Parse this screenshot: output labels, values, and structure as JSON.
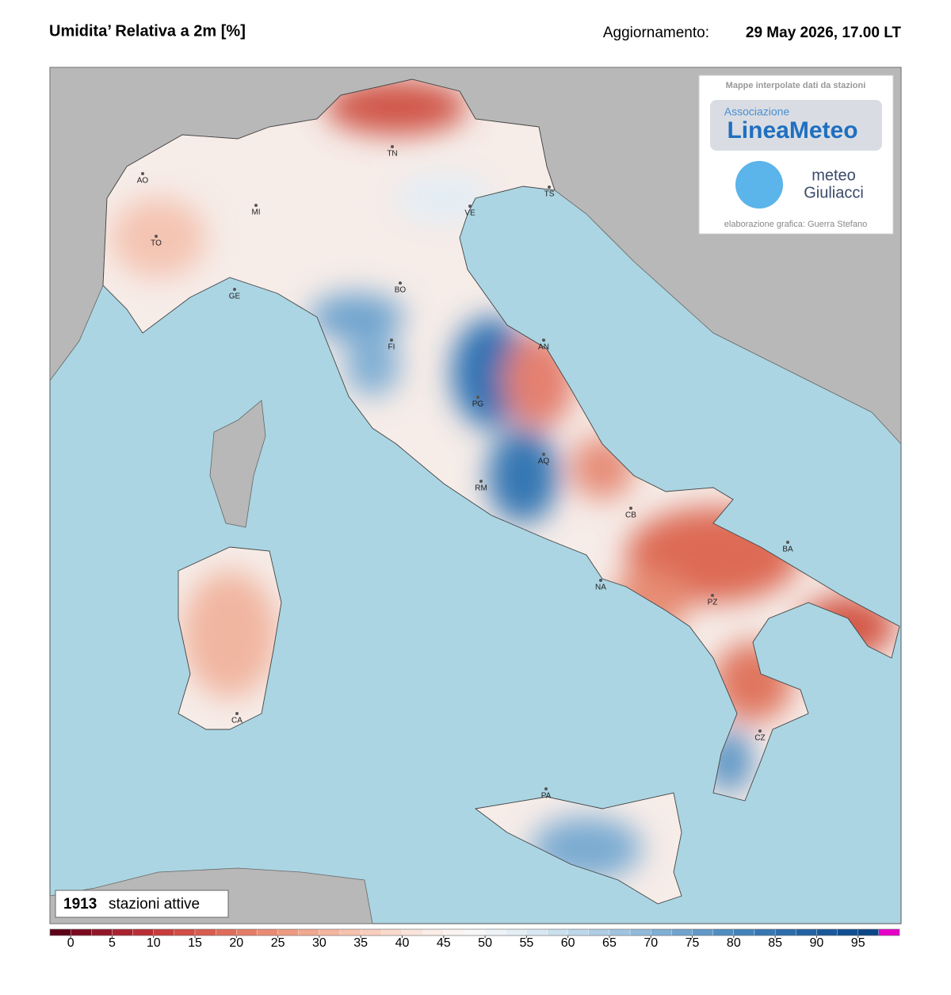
{
  "header": {
    "title": "Umidita’ Relativa a 2m [%]",
    "update_label": "Aggiornamento:",
    "update_time": "29 May 2026, 17.00 LT"
  },
  "logo_box": {
    "caption": "Mappe interpolate dati da stazioni",
    "logo1_top": "Associazione",
    "logo1_main": "LineaMeteo",
    "logo2_top": "meteo",
    "logo2_main": "Giuliacci",
    "credit": "elaborazione grafica: Guerra Stefano"
  },
  "cities": [
    "AO",
    "MI",
    "TO",
    "GE",
    "TN",
    "VE",
    "TS",
    "BO",
    "FI",
    "AN",
    "PG",
    "AQ",
    "RM",
    "CB",
    "BA",
    "NA",
    "PZ",
    "CZ",
    "PA",
    "CA"
  ],
  "stations": {
    "count": "1913",
    "label": "stazioni attive"
  },
  "colorbar": {
    "lim": [
      -2.5,
      100
    ],
    "ticks": [
      0,
      5,
      10,
      15,
      20,
      25,
      30,
      35,
      40,
      45,
      50,
      55,
      60,
      65,
      70,
      75,
      80,
      85,
      90,
      95
    ],
    "colors": [
      "#5c0017",
      "#7a0a1f",
      "#921628",
      "#a82230",
      "#b92e36",
      "#c63d3c",
      "#d04c45",
      "#d85c4f",
      "#df6c5a",
      "#e47c66",
      "#e98b73",
      "#ed9a81",
      "#f0a88f",
      "#f3b59e",
      "#f5c2ad",
      "#f7cebd",
      "#f8d9cc",
      "#f9e3db",
      "#faece7",
      "#faf3f1",
      "#f7f7f7",
      "#eef3f7",
      "#e4eef5",
      "#d8e7f2",
      "#cbe0ee",
      "#bdd7ea",
      "#afcee5",
      "#a0c4e0",
      "#90bada",
      "#80afd4",
      "#70a4ce",
      "#6099c8",
      "#508dc1",
      "#4282ba",
      "#3677b3",
      "#2b6cab",
      "#2262a3",
      "#19589a",
      "#104e91",
      "#0a4688",
      "#e600c8"
    ]
  }
}
